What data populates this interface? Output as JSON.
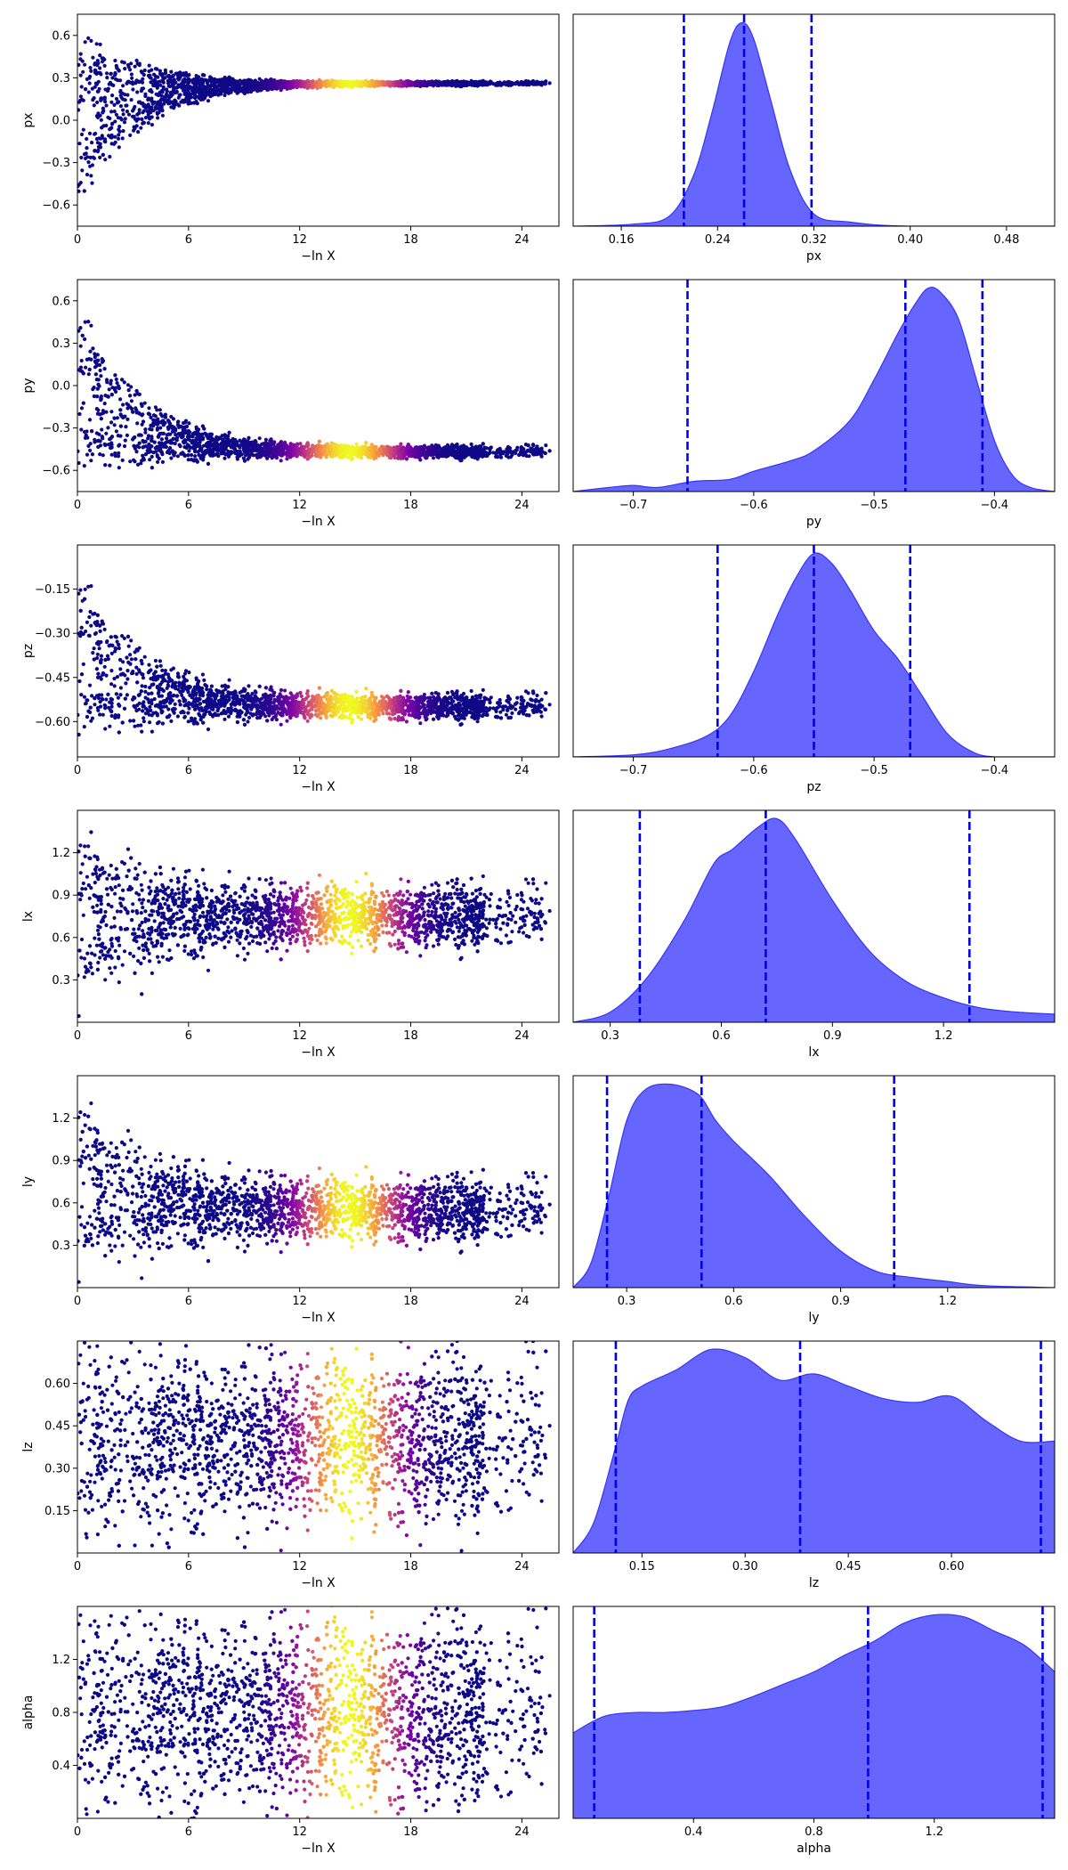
{
  "chart_data": {
    "type": "scatter",
    "description_panels": "Each row: left = trace scatter of parameter vs -ln X (colored by importance weight, plasma colormap); right = marginal posterior density with dashed quantile lines",
    "colors": {
      "scatter_low": "#0d0887",
      "scatter_mid": "#cc4778",
      "scatter_high": "#f0f921",
      "density_fill": "#6666ff",
      "density_line": "#3535f5",
      "quantile_line": "#0000ee"
    },
    "trace_xlabel": "−ln X",
    "trace_xlim": [
      0,
      26
    ],
    "trace_xticks": [
      "0",
      "6",
      "12",
      "18",
      "24"
    ],
    "trace_xtick_values": [
      0,
      6,
      12,
      18,
      24
    ],
    "weight_peak_lnx": 14.7,
    "weight_peak_width": 1.9,
    "rows": [
      {
        "param": "px",
        "trace": {
          "ylabel": "px",
          "ylim": [
            -0.75,
            0.75
          ],
          "yticks": [
            "0.6",
            "0.3",
            "0.0",
            "−0.3",
            "−0.6"
          ],
          "ytick_values": [
            0.6,
            0.3,
            0.0,
            -0.3,
            -0.6
          ],
          "converge_value": 0.26,
          "start_range": [
            -0.75,
            0.75
          ],
          "end_spread": 0.01
        },
        "hist": {
          "xlabel": "px",
          "xlim": [
            0.12,
            0.52
          ],
          "xticks": [
            "0.16",
            "0.24",
            "0.32",
            "0.40",
            "0.48"
          ],
          "xtick_values": [
            0.16,
            0.24,
            0.32,
            0.4,
            0.48
          ],
          "quantiles": [
            0.212,
            0.262,
            0.318
          ],
          "density_x": [
            0.12,
            0.17,
            0.2,
            0.22,
            0.235,
            0.25,
            0.26,
            0.27,
            0.285,
            0.3,
            0.32,
            0.35,
            0.4,
            0.52
          ],
          "density_y": [
            0.0,
            0.01,
            0.05,
            0.25,
            0.55,
            0.9,
            1.0,
            0.92,
            0.6,
            0.28,
            0.06,
            0.02,
            0.0,
            0.0
          ]
        }
      },
      {
        "param": "py",
        "trace": {
          "ylabel": "py",
          "ylim": [
            -0.75,
            0.75
          ],
          "yticks": [
            "0.6",
            "0.3",
            "0.0",
            "−0.3",
            "−0.6"
          ],
          "ytick_values": [
            0.6,
            0.3,
            0.0,
            -0.3,
            -0.6
          ],
          "converge_value": -0.47,
          "start_range": [
            -0.75,
            0.75
          ],
          "end_spread": 0.03
        },
        "hist": {
          "xlabel": "py",
          "xlim": [
            -0.75,
            -0.35
          ],
          "xticks": [
            "−0.7",
            "−0.6",
            "−0.5",
            "−0.4"
          ],
          "xtick_values": [
            -0.7,
            -0.6,
            -0.5,
            -0.4
          ],
          "quantiles": [
            -0.655,
            -0.474,
            -0.41
          ],
          "density_x": [
            -0.75,
            -0.72,
            -0.7,
            -0.68,
            -0.65,
            -0.62,
            -0.6,
            -0.57,
            -0.55,
            -0.52,
            -0.5,
            -0.48,
            -0.465,
            -0.455,
            -0.445,
            -0.43,
            -0.415,
            -0.4,
            -0.385,
            -0.37,
            -0.35
          ],
          "density_y": [
            0.0,
            0.02,
            0.03,
            0.02,
            0.05,
            0.06,
            0.1,
            0.15,
            0.2,
            0.35,
            0.55,
            0.78,
            0.93,
            1.0,
            0.98,
            0.85,
            0.55,
            0.25,
            0.08,
            0.02,
            0.0
          ]
        }
      },
      {
        "param": "pz",
        "trace": {
          "ylabel": "pz",
          "ylim": [
            -0.72,
            0.0
          ],
          "yticks": [
            "−0.15",
            "−0.30",
            "−0.45",
            "−0.60"
          ],
          "ytick_values": [
            -0.15,
            -0.3,
            -0.45,
            -0.6
          ],
          "converge_value": -0.55,
          "start_range": [
            -0.72,
            0.0
          ],
          "end_spread": 0.03
        },
        "hist": {
          "xlabel": "pz",
          "xlim": [
            -0.75,
            -0.35
          ],
          "xticks": [
            "−0.7",
            "−0.6",
            "−0.5",
            "−0.4"
          ],
          "xtick_values": [
            -0.7,
            -0.6,
            -0.5,
            -0.4
          ],
          "quantiles": [
            -0.63,
            -0.55,
            -0.47
          ],
          "density_x": [
            -0.75,
            -0.7,
            -0.67,
            -0.64,
            -0.62,
            -0.6,
            -0.58,
            -0.565,
            -0.55,
            -0.535,
            -0.52,
            -0.5,
            -0.48,
            -0.46,
            -0.44,
            -0.42,
            -0.4,
            -0.35
          ],
          "density_y": [
            0.0,
            0.01,
            0.04,
            0.1,
            0.2,
            0.42,
            0.7,
            0.88,
            1.0,
            0.95,
            0.82,
            0.62,
            0.48,
            0.3,
            0.12,
            0.03,
            0.0,
            0.0
          ]
        }
      },
      {
        "param": "lx",
        "trace": {
          "ylabel": "lx",
          "ylim": [
            0.0,
            1.5
          ],
          "yticks": [
            "1.2",
            "0.9",
            "0.6",
            "0.3"
          ],
          "ytick_values": [
            1.2,
            0.9,
            0.6,
            0.3
          ],
          "converge_value": 0.75,
          "start_range": [
            0.0,
            1.5
          ],
          "end_spread": 0.15
        },
        "hist": {
          "xlabel": "lx",
          "xlim": [
            0.2,
            1.5
          ],
          "xticks": [
            "0.3",
            "0.6",
            "0.9",
            "1.2"
          ],
          "xtick_values": [
            0.3,
            0.6,
            0.9,
            1.2
          ],
          "quantiles": [
            0.38,
            0.72,
            1.27
          ],
          "density_x": [
            0.2,
            0.3,
            0.4,
            0.5,
            0.58,
            0.63,
            0.7,
            0.75,
            0.8,
            0.9,
            1.0,
            1.1,
            1.2,
            1.3,
            1.4,
            1.5
          ],
          "density_y": [
            0.0,
            0.05,
            0.22,
            0.5,
            0.78,
            0.85,
            0.96,
            1.0,
            0.9,
            0.6,
            0.35,
            0.2,
            0.12,
            0.07,
            0.05,
            0.04
          ]
        }
      },
      {
        "param": "ly",
        "trace": {
          "ylabel": "ly",
          "ylim": [
            0.0,
            1.5
          ],
          "yticks": [
            "1.2",
            "0.9",
            "0.6",
            "0.3"
          ],
          "ytick_values": [
            1.2,
            0.9,
            0.6,
            0.3
          ],
          "converge_value": 0.55,
          "start_range": [
            0.0,
            1.5
          ],
          "end_spread": 0.15
        },
        "hist": {
          "xlabel": "ly",
          "xlim": [
            0.15,
            1.5
          ],
          "xticks": [
            "0.3",
            "0.6",
            "0.9",
            "1.2"
          ],
          "xtick_values": [
            0.3,
            0.6,
            0.9,
            1.2
          ],
          "quantiles": [
            0.245,
            0.51,
            1.05
          ],
          "density_x": [
            0.15,
            0.2,
            0.25,
            0.3,
            0.35,
            0.42,
            0.5,
            0.55,
            0.6,
            0.7,
            0.8,
            0.9,
            1.0,
            1.1,
            1.2,
            1.3,
            1.5
          ],
          "density_y": [
            0.0,
            0.12,
            0.45,
            0.82,
            0.97,
            1.0,
            0.95,
            0.82,
            0.72,
            0.55,
            0.35,
            0.18,
            0.08,
            0.05,
            0.03,
            0.01,
            0.0
          ]
        }
      },
      {
        "param": "lz",
        "trace": {
          "ylabel": "lz",
          "ylim": [
            0.0,
            0.75
          ],
          "yticks": [
            "0.60",
            "0.45",
            "0.30",
            "0.15"
          ],
          "ytick_values": [
            0.6,
            0.45,
            0.3,
            0.15
          ],
          "converge_value": 0.4,
          "start_range": [
            0.0,
            0.75
          ],
          "end_spread": 0.2
        },
        "hist": {
          "xlabel": "lz",
          "xlim": [
            0.05,
            0.75
          ],
          "xticks": [
            "0.15",
            "0.30",
            "0.45",
            "0.60"
          ],
          "xtick_values": [
            0.15,
            0.3,
            0.45,
            0.6
          ],
          "quantiles": [
            0.112,
            0.38,
            0.73
          ],
          "density_x": [
            0.05,
            0.08,
            0.11,
            0.13,
            0.15,
            0.2,
            0.25,
            0.3,
            0.35,
            0.4,
            0.45,
            0.5,
            0.55,
            0.6,
            0.65,
            0.7,
            0.75
          ],
          "density_y": [
            0.0,
            0.15,
            0.5,
            0.75,
            0.82,
            0.9,
            1.0,
            0.96,
            0.85,
            0.88,
            0.82,
            0.76,
            0.74,
            0.77,
            0.65,
            0.55,
            0.55
          ]
        }
      },
      {
        "param": "alpha",
        "trace": {
          "ylabel": "alpha",
          "ylim": [
            0.0,
            1.6
          ],
          "yticks": [
            "1.2",
            "0.8",
            "0.4"
          ],
          "ytick_values": [
            1.2,
            0.8,
            0.4
          ],
          "converge_value": 0.8,
          "start_range": [
            0.0,
            1.6
          ],
          "end_spread": 0.5
        },
        "hist": {
          "xlabel": "alpha",
          "xlim": [
            0.0,
            1.6
          ],
          "xticks": [
            "0.4",
            "0.8",
            "1.2"
          ],
          "xtick_values": [
            0.4,
            0.8,
            1.2
          ],
          "quantiles": [
            0.07,
            0.98,
            1.56
          ],
          "density_x": [
            0.0,
            0.1,
            0.2,
            0.3,
            0.4,
            0.5,
            0.6,
            0.7,
            0.8,
            0.9,
            1.0,
            1.1,
            1.2,
            1.3,
            1.4,
            1.5,
            1.6
          ],
          "density_y": [
            0.42,
            0.5,
            0.52,
            0.52,
            0.53,
            0.55,
            0.6,
            0.66,
            0.72,
            0.8,
            0.87,
            0.96,
            1.0,
            0.99,
            0.92,
            0.85,
            0.72
          ]
        }
      }
    ]
  }
}
